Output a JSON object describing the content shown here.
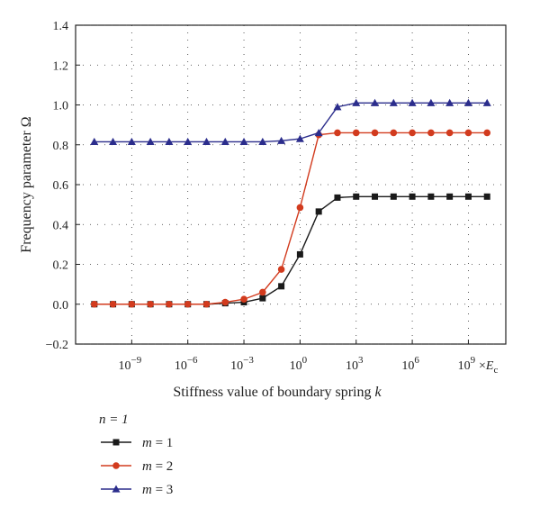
{
  "chart_data": {
    "type": "line",
    "x_scale": "log",
    "x_exponents": [
      -11,
      -10,
      -9,
      -8,
      -7,
      -6,
      -5,
      -4,
      -3,
      -2,
      -1,
      0,
      1,
      2,
      3,
      4,
      5,
      6,
      7,
      8,
      9,
      10
    ],
    "xlim_exponent": [
      -12,
      11
    ],
    "x_ticks": [
      -9,
      -6,
      -3,
      0,
      3,
      6,
      9
    ],
    "x_tick_labels": [
      "10",
      "10",
      "10",
      "10",
      "10",
      "10",
      "10"
    ],
    "x_tick_exponent_labels": [
      "−9",
      "−6",
      "−3",
      "0",
      "3",
      "6",
      "9"
    ],
    "x_unit_label": "×E",
    "x_unit_subscript": "c",
    "xlabel": "Stiffness value of boundary spring ",
    "xlabel_var": "k",
    "ylabel": "Frequency parameter Ω",
    "ylim": [
      -0.2,
      1.4
    ],
    "y_ticks": [
      "−0.2",
      "0.0",
      "0.2",
      "0.4",
      "0.6",
      "0.8",
      "1.0",
      "1.2",
      "1.4"
    ],
    "y_tick_values": [
      -0.2,
      0.0,
      0.2,
      0.4,
      0.6,
      0.8,
      1.0,
      1.2,
      1.4
    ],
    "grid": true,
    "legend_title": "n = 1",
    "series": [
      {
        "name": "m = 1",
        "color": "#1a1a1a",
        "marker": "square",
        "values": [
          0.0,
          0.0,
          0.0,
          0.0,
          0.0,
          0.0,
          0.0,
          0.005,
          0.01,
          0.03,
          0.09,
          0.25,
          0.465,
          0.535,
          0.54,
          0.54,
          0.54,
          0.54,
          0.54,
          0.54,
          0.54,
          0.54
        ]
      },
      {
        "name": "m = 2",
        "color": "#d23b1e",
        "marker": "circle",
        "values": [
          0.0,
          0.0,
          0.0,
          0.0,
          0.0,
          0.0,
          0.0,
          0.01,
          0.025,
          0.06,
          0.175,
          0.485,
          0.85,
          0.86,
          0.86,
          0.86,
          0.86,
          0.86,
          0.86,
          0.86,
          0.86,
          0.86
        ]
      },
      {
        "name": "m = 3",
        "color": "#2b2d8c",
        "marker": "triangle",
        "values": [
          0.815,
          0.815,
          0.815,
          0.815,
          0.815,
          0.815,
          0.815,
          0.815,
          0.815,
          0.815,
          0.82,
          0.83,
          0.86,
          0.99,
          1.01,
          1.01,
          1.01,
          1.01,
          1.01,
          1.01,
          1.01,
          1.01
        ]
      }
    ]
  }
}
